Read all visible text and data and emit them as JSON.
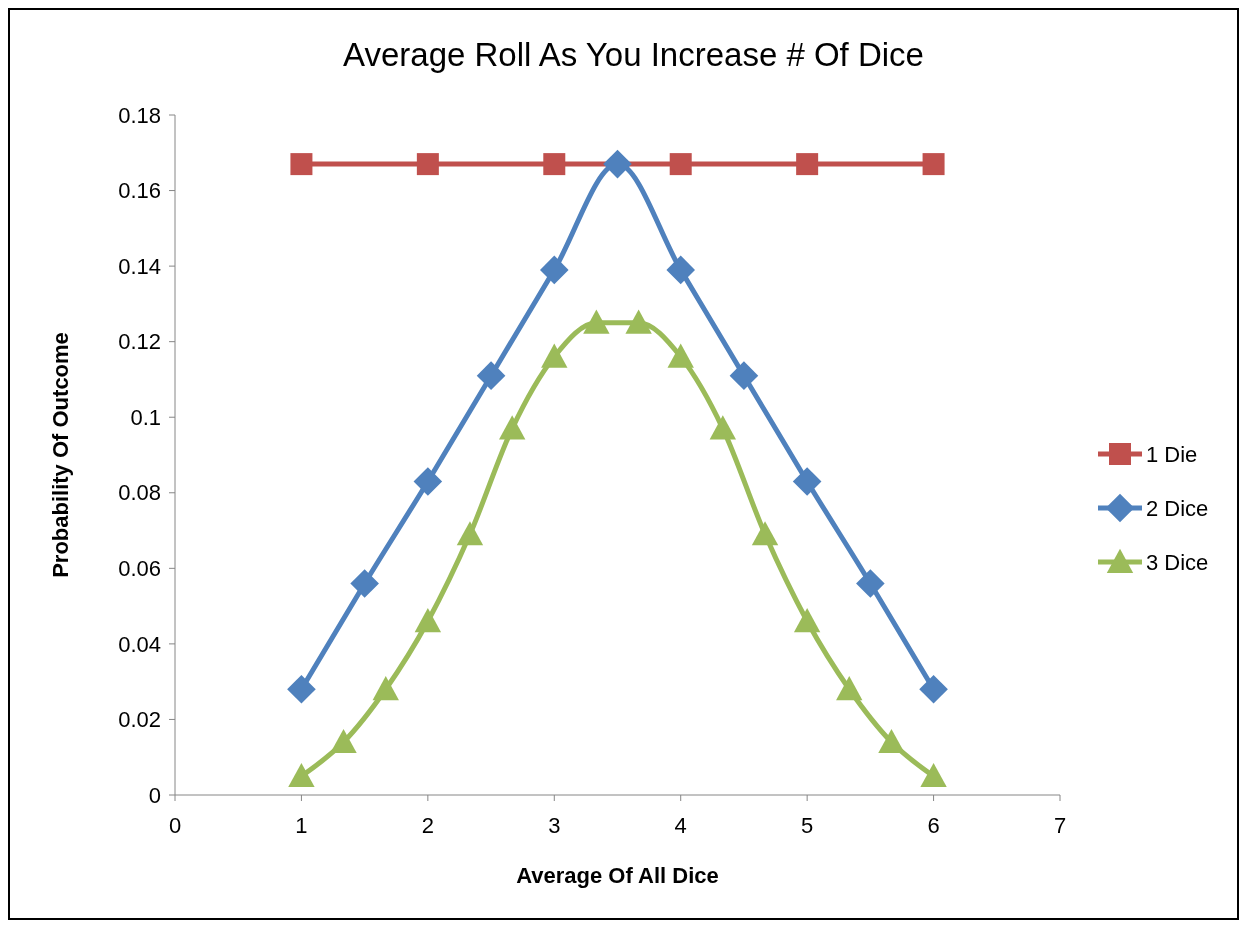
{
  "chart_data": {
    "type": "line",
    "title": "Average Roll As You Increase # Of Dice",
    "xlabel": "Average Of All Dice",
    "ylabel": "Probability Of Outcome",
    "xlim": [
      0,
      7
    ],
    "xticks": [
      0,
      1,
      2,
      3,
      4,
      5,
      6,
      7
    ],
    "ylim": [
      0,
      0.18
    ],
    "yticks": [
      0,
      0.02,
      0.04,
      0.06,
      0.08,
      0.1,
      0.12,
      0.14,
      0.16,
      0.18
    ],
    "grid": false,
    "legend": "right",
    "series": [
      {
        "name": "1 Die",
        "color": "#c0504d",
        "marker": "square",
        "x": [
          1,
          2,
          3,
          4,
          5,
          6
        ],
        "values": [
          0.167,
          0.167,
          0.167,
          0.167,
          0.167,
          0.167
        ]
      },
      {
        "name": "2 Dice",
        "color": "#4f81bd",
        "marker": "diamond",
        "x": [
          1,
          1.5,
          2,
          2.5,
          3,
          3.5,
          4,
          4.5,
          5,
          5.5,
          6
        ],
        "values": [
          0.028,
          0.056,
          0.083,
          0.111,
          0.139,
          0.167,
          0.139,
          0.111,
          0.083,
          0.056,
          0.028
        ]
      },
      {
        "name": "3 Dice",
        "color": "#9bbb59",
        "marker": "triangle",
        "x": [
          1,
          1.333,
          1.667,
          2,
          2.333,
          2.667,
          3,
          3.333,
          3.667,
          4,
          4.333,
          4.667,
          5,
          5.333,
          5.667,
          6
        ],
        "values": [
          0.005,
          0.014,
          0.028,
          0.046,
          0.069,
          0.097,
          0.116,
          0.125,
          0.125,
          0.116,
          0.097,
          0.069,
          0.046,
          0.028,
          0.014,
          0.005
        ]
      }
    ]
  }
}
